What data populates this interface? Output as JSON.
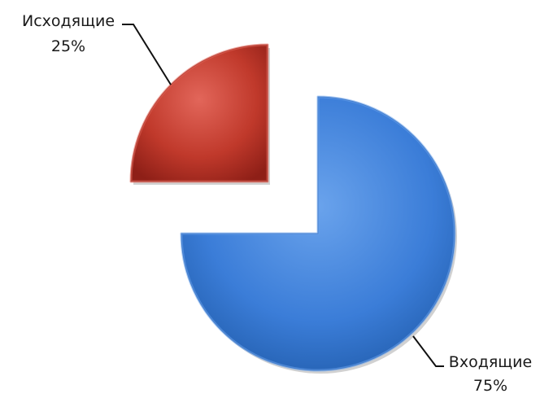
{
  "chart_data": {
    "type": "pie",
    "title": "",
    "legend": "none",
    "exploded": true,
    "style": "3d-bevel",
    "series": [
      {
        "values": [
          25,
          75
        ],
        "categories": [
          "Исходящие",
          "Входящие"
        ]
      }
    ],
    "slices": [
      {
        "label": "Исходящие",
        "value": 25,
        "value_label": "25%",
        "color": "#c0392b",
        "color_light": "#e2665a",
        "color_dark": "#8e1f17"
      },
      {
        "label": "Входящие",
        "value": 75,
        "value_label": "75%",
        "color": "#3b7dd8",
        "color_light": "#6aa3ec",
        "color_dark": "#1f5aa8"
      }
    ]
  }
}
